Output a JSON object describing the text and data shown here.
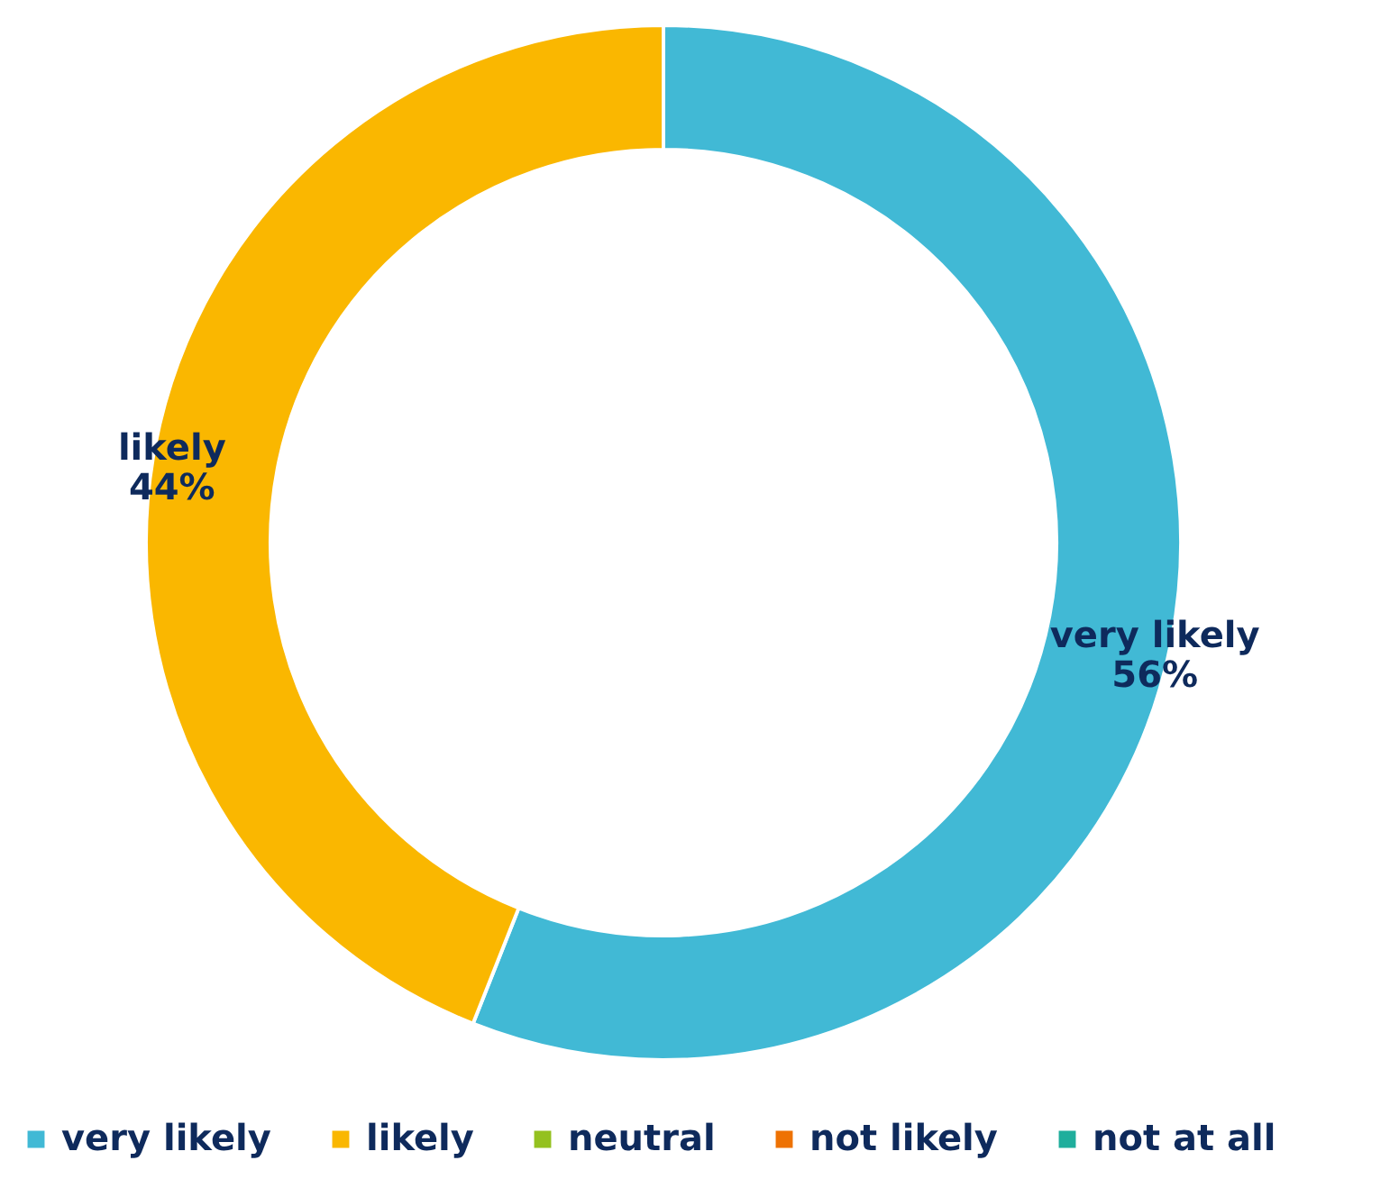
{
  "chart_data": {
    "type": "donut",
    "categories": [
      "very likely",
      "likely",
      "neutral",
      "not likely",
      "not at all"
    ],
    "values": [
      56,
      44,
      0,
      0,
      0
    ],
    "colors": [
      "#41b9d5",
      "#fab700",
      "#94c11f",
      "#ee7203",
      "#1fae9c"
    ],
    "value_labels": [
      "56%",
      "44%",
      null,
      null,
      null
    ],
    "legend": "bottom"
  }
}
